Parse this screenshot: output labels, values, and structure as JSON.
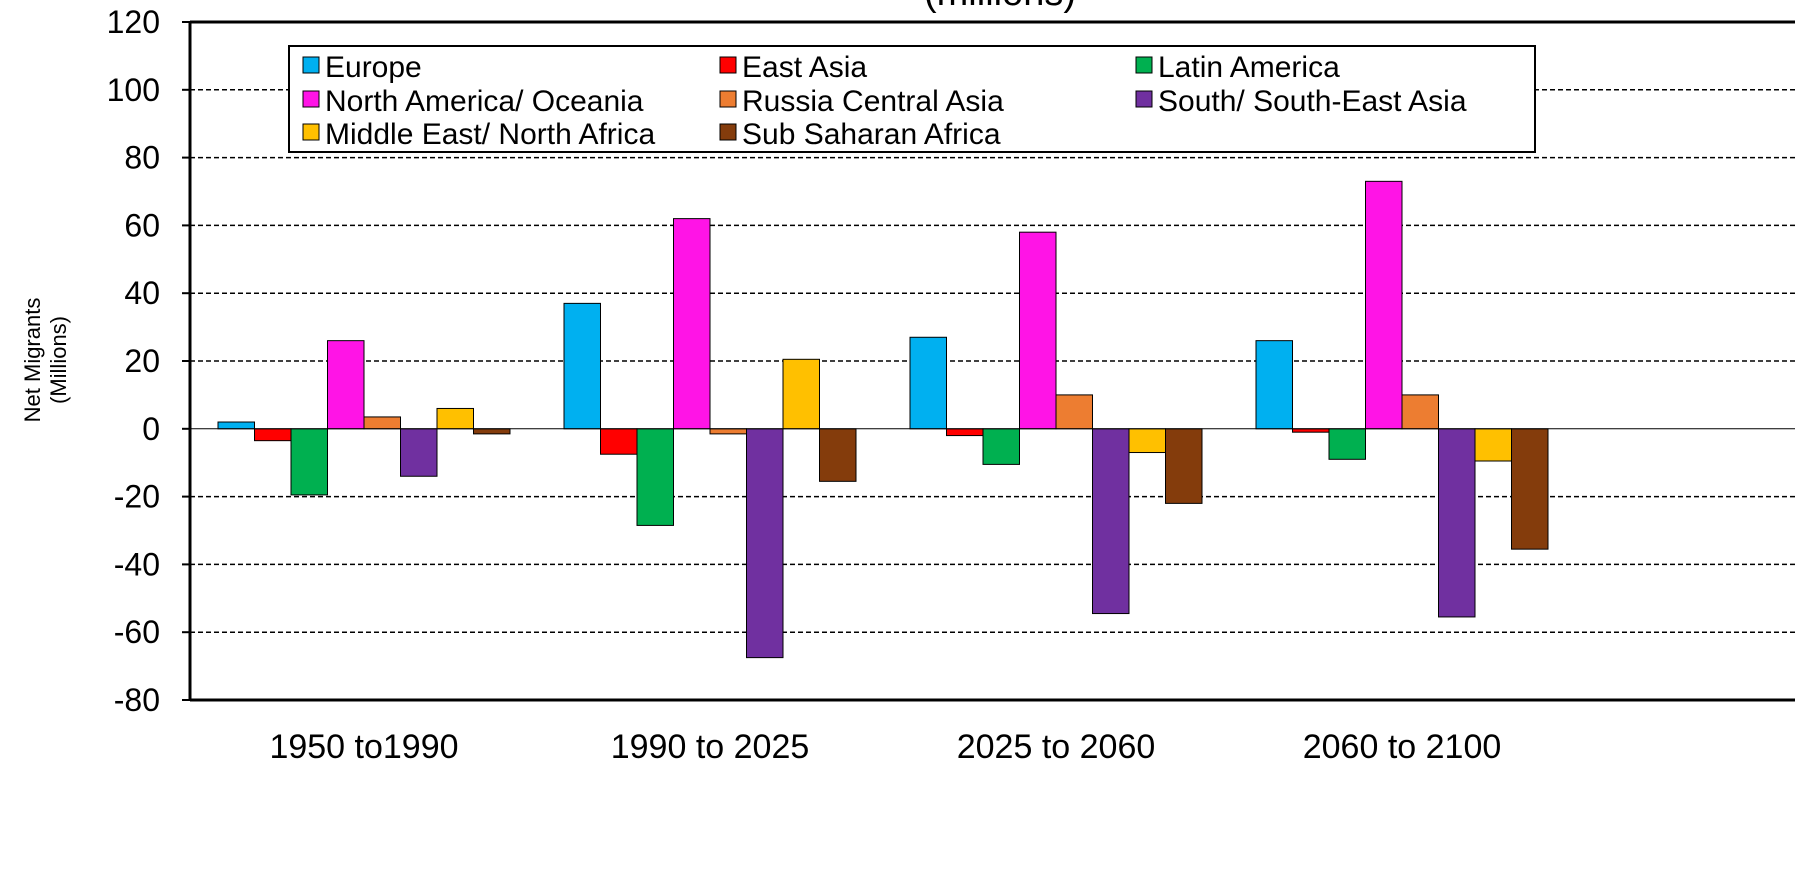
{
  "chart_data": {
    "type": "bar",
    "title": "(millions)",
    "xlabel": "",
    "ylabel_line1": "Net Migrants",
    "ylabel_line2": "(Millions)",
    "ylim": [
      -80,
      120
    ],
    "yticks": [
      -80,
      -60,
      -40,
      -20,
      0,
      20,
      40,
      60,
      80,
      100,
      120
    ],
    "grid": true,
    "legend_placement": "top",
    "categories": [
      "1950 to1990",
      "1990 to 2025",
      "2025 to 2060",
      "2060 to 2100"
    ],
    "series": [
      {
        "name": "Europe",
        "color": "#00B0F0",
        "values": [
          2,
          37,
          27,
          26
        ]
      },
      {
        "name": "East Asia",
        "color": "#FF0000",
        "values": [
          -3.5,
          -7.5,
          -2,
          -1
        ]
      },
      {
        "name": "Latin America",
        "color": "#00B050",
        "values": [
          -19.5,
          -28.5,
          -10.5,
          -9
        ]
      },
      {
        "name": "North America/ Oceania",
        "color": "#FF14E6",
        "values": [
          26,
          62,
          58,
          73
        ]
      },
      {
        "name": "Russia Central Asia",
        "color": "#ED7D31",
        "values": [
          3.5,
          -1.5,
          10,
          10
        ]
      },
      {
        "name": "South/ South-East Asia",
        "color": "#7030A0",
        "values": [
          -14,
          -67.5,
          -54.5,
          -55.5
        ]
      },
      {
        "name": "Middle East/ North Africa",
        "color": "#FFC000",
        "values": [
          6,
          20.5,
          -7,
          -9.5
        ]
      },
      {
        "name": "Sub Saharan Africa",
        "color": "#843C0C",
        "values": [
          -1.5,
          -15.5,
          -22,
          -35.5
        ]
      }
    ]
  }
}
